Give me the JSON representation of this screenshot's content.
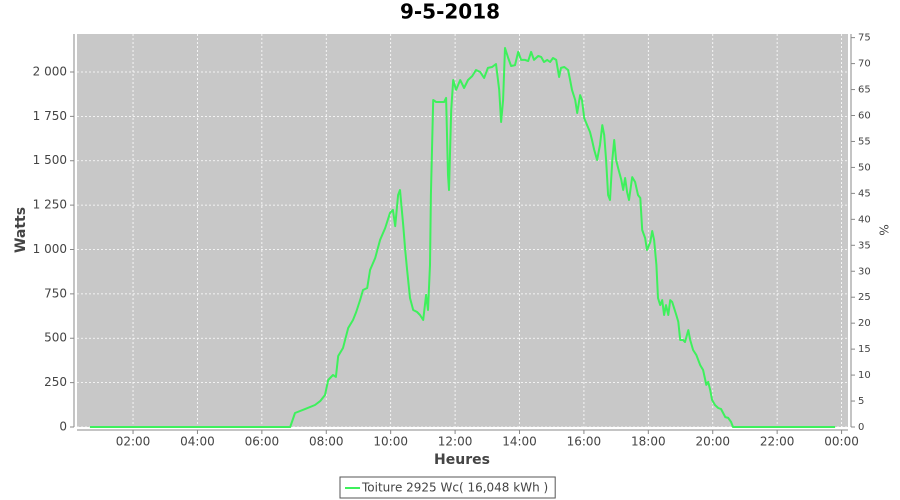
{
  "chart_data": {
    "type": "line",
    "title": "9-5-2018",
    "x_label": "Heures",
    "y_label": "Watts",
    "y2_label": "%",
    "x": [
      0.66,
      6.88,
      7.03,
      7.34,
      7.65,
      7.81,
      7.96,
      8.06,
      8.21,
      8.3,
      8.37,
      8.52,
      8.68,
      8.83,
      8.93,
      9.05,
      9.14,
      9.27,
      9.36,
      9.52,
      9.67,
      9.83,
      9.98,
      10.07,
      10.14,
      10.23,
      10.29,
      10.39,
      10.45,
      10.51,
      10.6,
      10.7,
      10.82,
      10.91,
      11.01,
      11.1,
      11.16,
      11.22,
      11.25,
      11.32,
      11.41,
      11.53,
      11.66,
      11.72,
      11.78,
      11.81,
      11.88,
      11.94,
      12.03,
      12.16,
      12.28,
      12.4,
      12.53,
      12.65,
      12.78,
      12.9,
      13.02,
      13.15,
      13.27,
      13.37,
      13.43,
      13.49,
      13.55,
      13.65,
      13.74,
      13.86,
      13.96,
      14.05,
      14.17,
      14.27,
      14.36,
      14.45,
      14.58,
      14.67,
      14.76,
      14.86,
      14.95,
      15.04,
      15.14,
      15.23,
      15.29,
      15.39,
      15.51,
      15.57,
      15.63,
      15.73,
      15.79,
      15.88,
      15.94,
      16.01,
      16.1,
      16.19,
      16.25,
      16.32,
      16.41,
      16.5,
      16.57,
      16.63,
      16.69,
      16.75,
      16.81,
      16.88,
      16.94,
      17.0,
      17.06,
      17.16,
      17.22,
      17.28,
      17.34,
      17.4,
      17.5,
      17.59,
      17.68,
      17.75,
      17.81,
      17.9,
      17.96,
      18.06,
      18.12,
      18.18,
      18.25,
      18.3,
      18.37,
      18.43,
      18.49,
      18.55,
      18.62,
      18.68,
      18.74,
      18.8,
      18.87,
      18.93,
      18.99,
      19.08,
      19.14,
      19.24,
      19.3,
      19.39,
      19.49,
      19.61,
      19.7,
      19.8,
      19.86,
      19.92,
      19.98,
      20.07,
      20.17,
      20.26,
      20.39,
      20.48,
      20.57,
      20.63,
      23.8
    ],
    "series": [
      {
        "name": "Toiture 2925 Wc( 16,048 kWh )",
        "color": "#3ef05c",
        "values": [
          0,
          0,
          79,
          101,
          124,
          146,
          180,
          265,
          293,
          282,
          400,
          445,
          558,
          603,
          648,
          715,
          772,
          783,
          885,
          952,
          1054,
          1121,
          1206,
          1223,
          1132,
          1307,
          1335,
          1138,
          997,
          885,
          727,
          659,
          648,
          631,
          603,
          744,
          659,
          913,
          1307,
          1842,
          1831,
          1831,
          1831,
          1854,
          1420,
          1335,
          1786,
          1955,
          1899,
          1955,
          1910,
          1955,
          1977,
          2011,
          2000,
          1966,
          2023,
          2028,
          2045,
          1899,
          1718,
          1842,
          2135,
          2079,
          2034,
          2039,
          2113,
          2068,
          2068,
          2062,
          2113,
          2068,
          2090,
          2085,
          2056,
          2068,
          2056,
          2079,
          2068,
          1972,
          2023,
          2028,
          2011,
          1955,
          1899,
          1842,
          1769,
          1870,
          1842,
          1741,
          1701,
          1662,
          1617,
          1561,
          1504,
          1589,
          1701,
          1645,
          1504,
          1307,
          1279,
          1504,
          1617,
          1504,
          1459,
          1392,
          1335,
          1403,
          1324,
          1279,
          1408,
          1380,
          1307,
          1290,
          1110,
          1065,
          997,
          1042,
          1104,
          1054,
          913,
          727,
          687,
          715,
          631,
          687,
          631,
          715,
          704,
          670,
          631,
          592,
          490,
          490,
          479,
          546,
          490,
          434,
          406,
          349,
          321,
          237,
          254,
          208,
          152,
          124,
          107,
          101,
          56,
          51,
          28,
          0,
          0
        ]
      }
    ],
    "xlim": [
      0.26,
      24.2
    ],
    "xticks": [
      {
        "value": 2,
        "label": "02:00"
      },
      {
        "value": 4,
        "label": "04:00"
      },
      {
        "value": 6,
        "label": "06:00"
      },
      {
        "value": 8,
        "label": "08:00"
      },
      {
        "value": 10,
        "label": "10:00"
      },
      {
        "value": 12,
        "label": "12:00"
      },
      {
        "value": 14,
        "label": "14:00"
      },
      {
        "value": 16,
        "label": "16:00"
      },
      {
        "value": 18,
        "label": "18:00"
      },
      {
        "value": 20,
        "label": "20:00"
      },
      {
        "value": 22,
        "label": "22:00"
      },
      {
        "value": 24,
        "label": "00:00"
      }
    ],
    "ylim": [
      0,
      2214
    ],
    "yticks": [
      0,
      250,
      500,
      750,
      {
        "value": 1000,
        "label": "1 000"
      },
      {
        "value": 1250,
        "label": "1 250"
      },
      {
        "value": 1500,
        "label": "1 500"
      },
      {
        "value": 1750,
        "label": "1 750"
      },
      {
        "value": 2000,
        "label": "2 000"
      }
    ],
    "y2lim": [
      0,
      75.7
    ],
    "y2ticks": [
      0,
      5,
      10,
      15,
      20,
      25,
      30,
      35,
      40,
      45,
      50,
      55,
      60,
      65,
      70,
      75
    ],
    "grid": true,
    "legend": "bottom"
  }
}
